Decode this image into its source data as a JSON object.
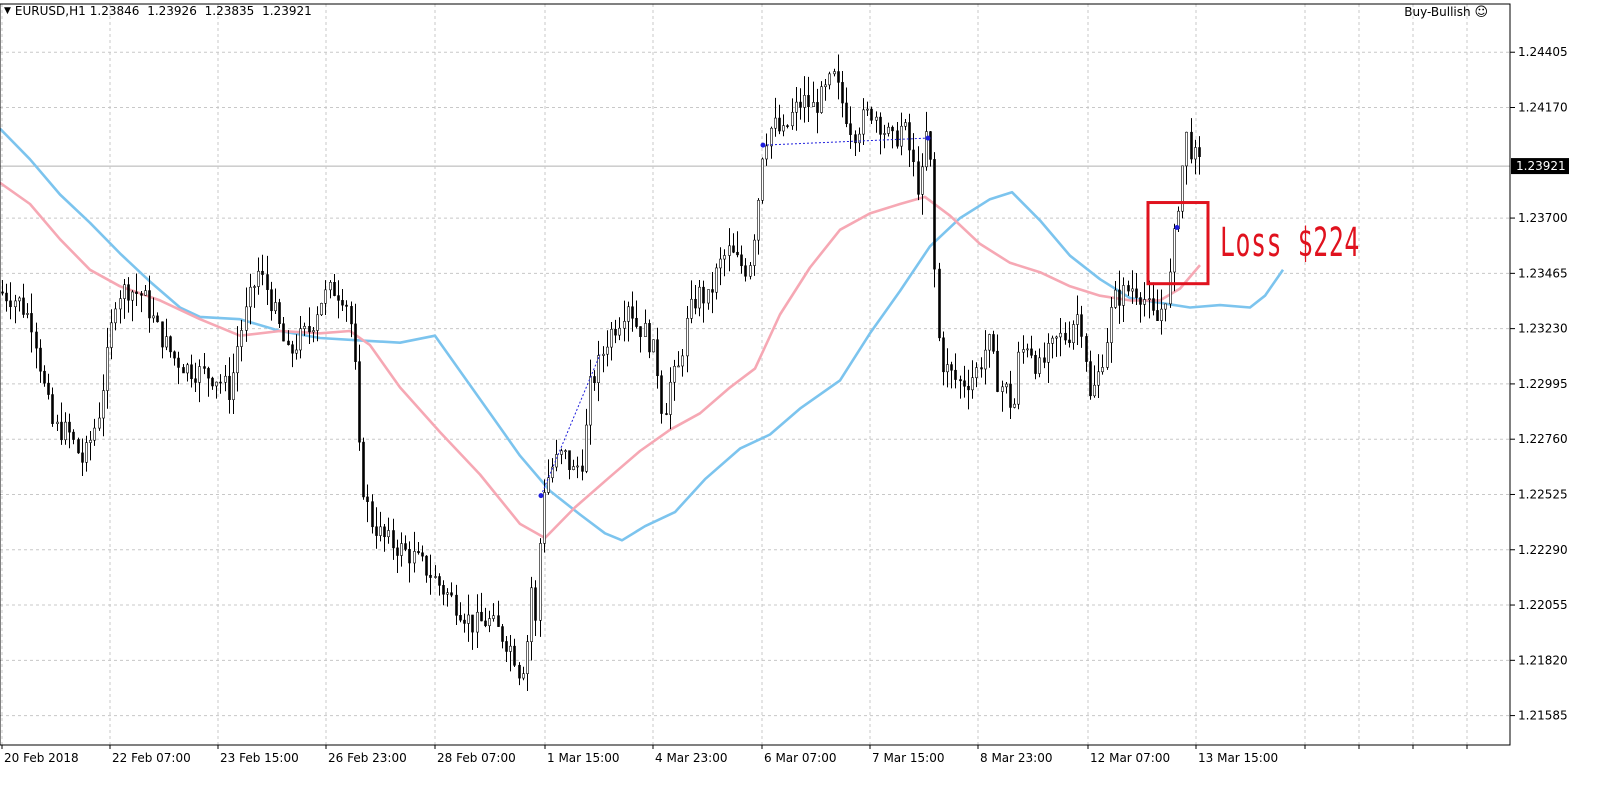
{
  "header": {
    "symbol": "EURUSD,H1",
    "open": "1.23846",
    "high": "1.23926",
    "low": "1.23835",
    "close": "1.23921",
    "expert_name": "Buy-Bullish",
    "expert_icon": "smiley-icon"
  },
  "annotation": {
    "text": "Loss $224",
    "color": "#e0121e"
  },
  "current_price": {
    "label": "1.23921",
    "value": 1.23921
  },
  "chart_data": {
    "type": "candlestick",
    "symbol": "EURUSD",
    "timeframe": "H1",
    "y_ticks": [
      1.24405,
      1.2417,
      1.23921,
      1.237,
      1.23465,
      1.2323,
      1.22995,
      1.2276,
      1.22525,
      1.2229,
      1.22055,
      1.2182,
      1.21585
    ],
    "y_tick_labels": [
      "1.24405",
      "1.24170",
      "1.23921",
      "1.23700",
      "1.23465",
      "1.23230",
      "1.22995",
      "1.22760",
      "1.22525",
      "1.22290",
      "1.22055",
      "1.21820",
      "1.21585"
    ],
    "ylim": [
      1.2146,
      1.2461
    ],
    "x_labels": [
      "20 Feb 2018",
      "22 Feb 07:00",
      "23 Feb 15:00",
      "26 Feb 23:00",
      "28 Feb 07:00",
      "1 Mar 15:00",
      "4 Mar 23:00",
      "6 Mar 07:00",
      "7 Mar 15:00",
      "8 Mar 23:00",
      "12 Mar 07:00",
      "13 Mar 15:00"
    ],
    "grid": true,
    "colors": {
      "candle": "#000000",
      "ma_fast": "#f6a8b4",
      "ma_slow": "#7cc4ee",
      "annotation_box": "#e0121e",
      "trade_line": "#1e1edc"
    },
    "price_path": [
      [
        0,
        1.2339
      ],
      [
        20,
        1.2335
      ],
      [
        35,
        1.2325
      ],
      [
        45,
        1.23
      ],
      [
        55,
        1.2281
      ],
      [
        70,
        1.2279
      ],
      [
        85,
        1.2266
      ],
      [
        100,
        1.2286
      ],
      [
        110,
        1.2313
      ],
      [
        118,
        1.2338
      ],
      [
        130,
        1.234
      ],
      [
        145,
        1.2337
      ],
      [
        160,
        1.2322
      ],
      [
        175,
        1.2311
      ],
      [
        190,
        1.2306
      ],
      [
        205,
        1.2304
      ],
      [
        220,
        1.2302
      ],
      [
        232,
        1.2296
      ],
      [
        240,
        1.2318
      ],
      [
        252,
        1.2336
      ],
      [
        260,
        1.2347
      ],
      [
        270,
        1.2339
      ],
      [
        280,
        1.2325
      ],
      [
        290,
        1.2311
      ],
      [
        300,
        1.2318
      ],
      [
        312,
        1.2323
      ],
      [
        322,
        1.2335
      ],
      [
        335,
        1.234
      ],
      [
        347,
        1.2337
      ],
      [
        355,
        1.232
      ],
      [
        362,
        1.2262
      ],
      [
        372,
        1.2242
      ],
      [
        385,
        1.2234
      ],
      [
        400,
        1.223
      ],
      [
        415,
        1.2226
      ],
      [
        430,
        1.222
      ],
      [
        445,
        1.2212
      ],
      [
        460,
        1.2205
      ],
      [
        475,
        1.2197
      ],
      [
        490,
        1.2199
      ],
      [
        505,
        1.2192
      ],
      [
        515,
        1.2186
      ],
      [
        522,
        1.2176
      ],
      [
        528,
        1.2185
      ],
      [
        533,
        1.2214
      ],
      [
        538,
        1.2195
      ],
      [
        541,
        1.2228
      ],
      [
        545,
        1.2255
      ],
      [
        555,
        1.2265
      ],
      [
        565,
        1.227
      ],
      [
        575,
        1.2262
      ],
      [
        585,
        1.2268
      ],
      [
        592,
        1.2298
      ],
      [
        600,
        1.2307
      ],
      [
        610,
        1.232
      ],
      [
        620,
        1.2326
      ],
      [
        630,
        1.2335
      ],
      [
        638,
        1.2325
      ],
      [
        648,
        1.2321
      ],
      [
        658,
        1.231
      ],
      [
        665,
        1.2285
      ],
      [
        672,
        1.23
      ],
      [
        680,
        1.2305
      ],
      [
        690,
        1.2328
      ],
      [
        700,
        1.2338
      ],
      [
        710,
        1.2335
      ],
      [
        720,
        1.2349
      ],
      [
        730,
        1.2356
      ],
      [
        740,
        1.2351
      ],
      [
        750,
        1.2348
      ],
      [
        758,
        1.237
      ],
      [
        765,
        1.2402
      ],
      [
        775,
        1.241
      ],
      [
        785,
        1.2405
      ],
      [
        795,
        1.2415
      ],
      [
        805,
        1.242
      ],
      [
        815,
        1.2417
      ],
      [
        825,
        1.2422
      ],
      [
        835,
        1.243
      ],
      [
        845,
        1.2418
      ],
      [
        855,
        1.2406
      ],
      [
        865,
        1.2412
      ],
      [
        875,
        1.2416
      ],
      [
        885,
        1.2408
      ],
      [
        895,
        1.2402
      ],
      [
        905,
        1.241
      ],
      [
        915,
        1.2392
      ],
      [
        922,
        1.238
      ],
      [
        928,
        1.2405
      ],
      [
        933,
        1.239
      ],
      [
        937,
        1.234
      ],
      [
        942,
        1.231
      ],
      [
        950,
        1.2305
      ],
      [
        960,
        1.23
      ],
      [
        970,
        1.2301
      ],
      [
        980,
        1.2306
      ],
      [
        990,
        1.2318
      ],
      [
        1000,
        1.23
      ],
      [
        1010,
        1.2296
      ],
      [
        1015,
        1.2285
      ],
      [
        1020,
        1.231
      ],
      [
        1030,
        1.2318
      ],
      [
        1040,
        1.2305
      ],
      [
        1050,
        1.2312
      ],
      [
        1060,
        1.2319
      ],
      [
        1070,
        1.232
      ],
      [
        1078,
        1.233
      ],
      [
        1085,
        1.2323
      ],
      [
        1092,
        1.2292
      ],
      [
        1100,
        1.2303
      ],
      [
        1108,
        1.2318
      ],
      [
        1115,
        1.2335
      ],
      [
        1125,
        1.2338
      ],
      [
        1135,
        1.2341
      ],
      [
        1145,
        1.2337
      ],
      [
        1152,
        1.233
      ],
      [
        1158,
        1.2325
      ],
      [
        1165,
        1.2334
      ],
      [
        1172,
        1.2345
      ],
      [
        1178,
        1.237
      ],
      [
        1183,
        1.2388
      ],
      [
        1188,
        1.2405
      ],
      [
        1194,
        1.2398
      ],
      [
        1200,
        1.2392
      ]
    ],
    "ma_fast": [
      [
        0,
        1.2385
      ],
      [
        30,
        1.2376
      ],
      [
        60,
        1.2361
      ],
      [
        90,
        1.2348
      ],
      [
        120,
        1.2341
      ],
      [
        160,
        1.2335
      ],
      [
        200,
        1.2327
      ],
      [
        240,
        1.232
      ],
      [
        280,
        1.2322
      ],
      [
        320,
        1.2321
      ],
      [
        350,
        1.2322
      ],
      [
        370,
        1.2316
      ],
      [
        400,
        1.2298
      ],
      [
        440,
        1.2279
      ],
      [
        480,
        1.2261
      ],
      [
        520,
        1.224
      ],
      [
        545,
        1.2234
      ],
      [
        575,
        1.2247
      ],
      [
        610,
        1.226
      ],
      [
        640,
        1.2271
      ],
      [
        670,
        1.228
      ],
      [
        700,
        1.2287
      ],
      [
        730,
        1.2298
      ],
      [
        755,
        1.2306
      ],
      [
        780,
        1.2329
      ],
      [
        810,
        1.2349
      ],
      [
        840,
        1.2365
      ],
      [
        870,
        1.2372
      ],
      [
        900,
        1.2376
      ],
      [
        925,
        1.2379
      ],
      [
        950,
        1.2371
      ],
      [
        980,
        1.2359
      ],
      [
        1010,
        1.2351
      ],
      [
        1040,
        1.2347
      ],
      [
        1070,
        1.2341
      ],
      [
        1100,
        1.2337
      ],
      [
        1130,
        1.2335
      ],
      [
        1160,
        1.2335
      ],
      [
        1180,
        1.234
      ],
      [
        1200,
        1.235
      ]
    ],
    "ma_slow": [
      [
        0,
        1.2408
      ],
      [
        30,
        1.2395
      ],
      [
        60,
        1.238
      ],
      [
        90,
        1.2368
      ],
      [
        120,
        1.2355
      ],
      [
        150,
        1.2343
      ],
      [
        180,
        1.2332
      ],
      [
        200,
        1.2328
      ],
      [
        240,
        1.2327
      ],
      [
        280,
        1.2322
      ],
      [
        320,
        1.2319
      ],
      [
        360,
        1.2318
      ],
      [
        400,
        1.2317
      ],
      [
        435,
        1.232
      ],
      [
        460,
        1.2305
      ],
      [
        490,
        1.2287
      ],
      [
        520,
        1.2269
      ],
      [
        550,
        1.2254
      ],
      [
        580,
        1.2244
      ],
      [
        605,
        1.2236
      ],
      [
        622,
        1.2233
      ],
      [
        645,
        1.2239
      ],
      [
        675,
        1.2245
      ],
      [
        705,
        1.2259
      ],
      [
        740,
        1.2272
      ],
      [
        770,
        1.2278
      ],
      [
        800,
        1.2289
      ],
      [
        840,
        1.2301
      ],
      [
        870,
        1.2321
      ],
      [
        900,
        1.2339
      ],
      [
        930,
        1.2358
      ],
      [
        960,
        1.237
      ],
      [
        990,
        1.2378
      ],
      [
        1012,
        1.2381
      ],
      [
        1040,
        1.2369
      ],
      [
        1070,
        1.2354
      ],
      [
        1100,
        1.2344
      ],
      [
        1130,
        1.2336
      ],
      [
        1160,
        1.2334
      ],
      [
        1190,
        1.2332
      ],
      [
        1220,
        1.2333
      ],
      [
        1250,
        1.2332
      ],
      [
        1265,
        1.2337
      ],
      [
        1283,
        1.2348
      ]
    ],
    "trade_markers": [
      {
        "x": 541,
        "y": 1.2252
      },
      {
        "x": 763,
        "y": 1.2401
      },
      {
        "x": 928,
        "y": 1.2404
      },
      {
        "x": 1177,
        "y": 1.2366
      }
    ],
    "annotation_box_range": {
      "x_from": 1148,
      "x_to": 1208,
      "y_from": 1.23421,
      "y_to": 1.23766
    }
  }
}
